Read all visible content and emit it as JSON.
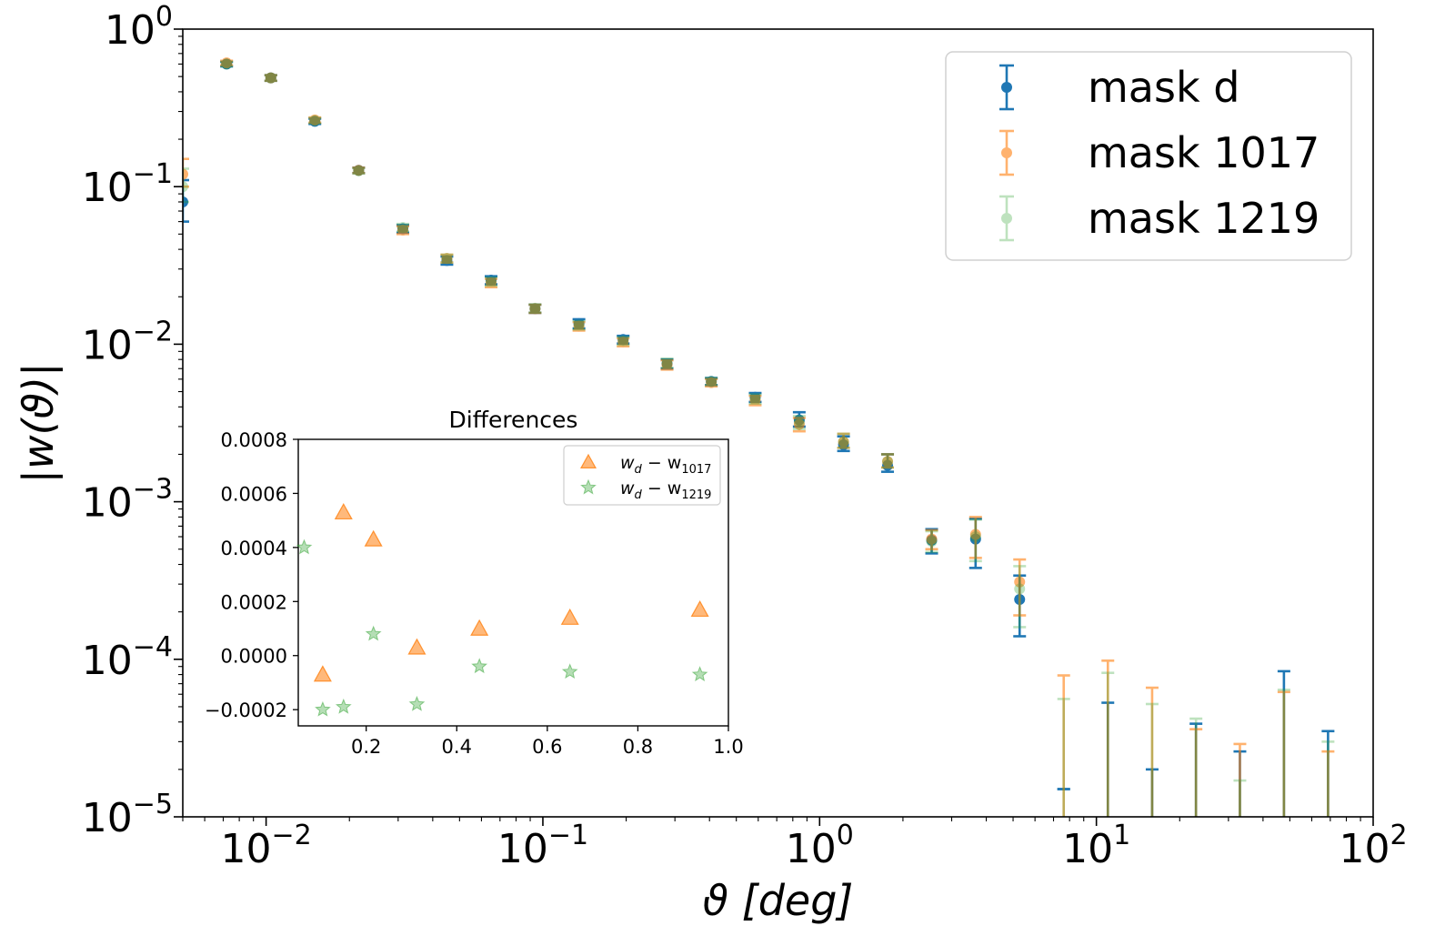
{
  "chart_data": [
    {
      "type": "scatter",
      "variant": "errorbar",
      "xscale": "log",
      "yscale": "log",
      "xlabel": "ϑ [deg]",
      "ylabel": "|w(ϑ)|",
      "xlim": [
        0.005,
        100
      ],
      "ylim": [
        1e-05,
        1
      ],
      "xtick_labels": [
        {
          "base": "10",
          "exp": "−2"
        },
        {
          "base": "10",
          "exp": "−1"
        },
        {
          "base": "10",
          "exp": "0"
        },
        {
          "base": "10",
          "exp": "1"
        },
        {
          "base": "10",
          "exp": "2"
        }
      ],
      "ytick_labels": [
        {
          "base": "10",
          "exp": "0"
        },
        {
          "base": "10",
          "exp": "−1"
        },
        {
          "base": "10",
          "exp": "−2"
        },
        {
          "base": "10",
          "exp": "−3"
        },
        {
          "base": "10",
          "exp": "−4"
        },
        {
          "base": "10",
          "exp": "−5"
        }
      ],
      "legend_position": "top-right",
      "x": [
        0.005,
        0.0072,
        0.0104,
        0.015,
        0.0216,
        0.0312,
        0.045,
        0.065,
        0.0937,
        0.135,
        0.195,
        0.281,
        0.406,
        0.585,
        0.844,
        1.22,
        1.76,
        2.54,
        3.66,
        5.28,
        7.62,
        11.0,
        15.9,
        22.9,
        33.0,
        47.6,
        68.7
      ],
      "series": [
        {
          "name": "mask d",
          "color": "#1f77b4",
          "values": [
            0.08,
            0.6,
            0.49,
            0.26,
            0.127,
            0.054,
            0.034,
            0.0255,
            0.0168,
            0.0135,
            0.0107,
            0.0075,
            0.0058,
            0.0046,
            0.0033,
            0.0023,
            0.0017,
            0.00057,
            0.00058,
            0.00024,
            null,
            null,
            null,
            null,
            null,
            null,
            null
          ],
          "err_low": [
            0.06,
            0.58,
            0.47,
            0.25,
            0.122,
            0.051,
            0.032,
            0.024,
            0.0158,
            0.0126,
            0.0101,
            0.007,
            0.0055,
            0.0043,
            0.003,
            0.0021,
            0.00155,
            0.00047,
            0.00038,
            0.00014,
            1.5e-05,
            8e-06,
            8e-06,
            8e-06,
            8e-06,
            8e-06,
            8e-06
          ],
          "err_high": [
            0.11,
            0.62,
            0.51,
            0.27,
            0.132,
            0.057,
            0.036,
            0.027,
            0.0178,
            0.0144,
            0.0113,
            0.008,
            0.0061,
            0.0049,
            0.0037,
            0.0026,
            0.002,
            0.00067,
            0.00078,
            0.00034,
            1.5e-05,
            5.3e-05,
            2e-05,
            3.9e-05,
            2.6e-05,
            8.4e-05,
            3.5e-05
          ]
        },
        {
          "name": "mask 1017",
          "color": "#ff7f0e",
          "values": [
            0.12,
            0.61,
            0.49,
            0.265,
            0.127,
            0.053,
            0.035,
            0.0245,
            0.0168,
            0.013,
            0.0103,
            0.0074,
            0.0057,
            0.0044,
            0.0031,
            0.0024,
            0.0018,
            0.00058,
            0.00062,
            0.00031,
            null,
            null,
            null,
            null,
            null,
            null,
            null
          ],
          "err_low": [
            0.1,
            0.59,
            0.47,
            0.255,
            0.122,
            0.05,
            0.033,
            0.023,
            0.0158,
            0.0122,
            0.0097,
            0.0069,
            0.0054,
            0.0041,
            0.0028,
            0.0022,
            0.00165,
            0.0005,
            0.00044,
            0.00019,
            8e-06,
            8e-06,
            8e-06,
            8e-06,
            8e-06,
            8e-06,
            8e-06
          ],
          "err_high": [
            0.15,
            0.63,
            0.51,
            0.275,
            0.132,
            0.056,
            0.037,
            0.026,
            0.0178,
            0.0138,
            0.0109,
            0.0079,
            0.006,
            0.0047,
            0.0034,
            0.0027,
            0.002,
            0.00066,
            0.0008,
            0.00043,
            7.9e-05,
            9.8e-05,
            6.6e-05,
            3.6e-05,
            2.9e-05,
            6.2e-05,
            2.6e-05
          ]
        },
        {
          "name": "mask 1219",
          "color": "#2ca02c",
          "values": [
            0.1,
            0.6,
            0.49,
            0.263,
            0.126,
            0.055,
            0.035,
            0.025,
            0.0169,
            0.0132,
            0.0105,
            0.0076,
            0.0058,
            0.0045,
            0.0032,
            0.0024,
            0.0018,
            0.00056,
            0.0006,
            0.00028,
            null,
            null,
            null,
            null,
            null,
            null,
            null
          ],
          "err_low": [
            0.08,
            0.58,
            0.47,
            0.253,
            0.121,
            0.052,
            0.033,
            0.0235,
            0.0159,
            0.0124,
            0.0099,
            0.0071,
            0.0055,
            0.0042,
            0.0029,
            0.0022,
            0.00165,
            0.00048,
            0.00042,
            0.00016,
            8e-06,
            8e-06,
            8e-06,
            8e-06,
            8e-06,
            8e-06,
            8e-06
          ],
          "err_high": [
            0.13,
            0.62,
            0.51,
            0.273,
            0.131,
            0.058,
            0.037,
            0.0265,
            0.0179,
            0.014,
            0.0111,
            0.0081,
            0.0061,
            0.0048,
            0.0035,
            0.0027,
            0.002,
            0.00065,
            0.00077,
            0.00039,
            5.6e-05,
            8.2e-05,
            5.2e-05,
            4.2e-05,
            1.7e-05,
            6.4e-05,
            3e-05
          ]
        }
      ]
    },
    {
      "type": "scatter",
      "title": "Differences",
      "xlim": [
        0.05,
        1.0
      ],
      "ylim": [
        -0.00026,
        0.0008
      ],
      "xticks": [
        "0.2",
        "0.4",
        "0.6",
        "0.8",
        "1.0"
      ],
      "xtick_values": [
        0.2,
        0.4,
        0.6,
        0.8,
        1.0
      ],
      "yticks": [
        "−0.0002",
        "0.0000",
        "0.0002",
        "0.0004",
        "0.0006",
        "0.0008"
      ],
      "ytick_values": [
        -0.0002,
        0.0,
        0.0002,
        0.0004,
        0.0006,
        0.0008
      ],
      "legend_position": "top-right",
      "series": [
        {
          "name": "w_d − w_1017",
          "label_main": "w",
          "label_sub_a": "d",
          "label_sub_b": "1017",
          "marker": "triangle",
          "color": "#ff7f0e",
          "x": [
            0.104,
            0.15,
            0.216,
            0.312,
            0.45,
            0.65,
            0.937
          ],
          "y": [
            -7e-05,
            0.00053,
            0.00043,
            3e-05,
            0.0001,
            0.00014,
            0.00017
          ]
        },
        {
          "name": "w_d − w_1219",
          "label_main": "w",
          "label_sub_a": "d",
          "label_sub_b": "1219",
          "marker": "star",
          "color": "#2ca02c",
          "x": [
            0.063,
            0.104,
            0.15,
            0.216,
            0.312,
            0.45,
            0.65,
            0.937
          ],
          "y": [
            0.0004,
            -0.0002,
            -0.00019,
            8e-05,
            -0.00018,
            -4e-05,
            -6e-05,
            -7e-05
          ]
        }
      ]
    }
  ]
}
